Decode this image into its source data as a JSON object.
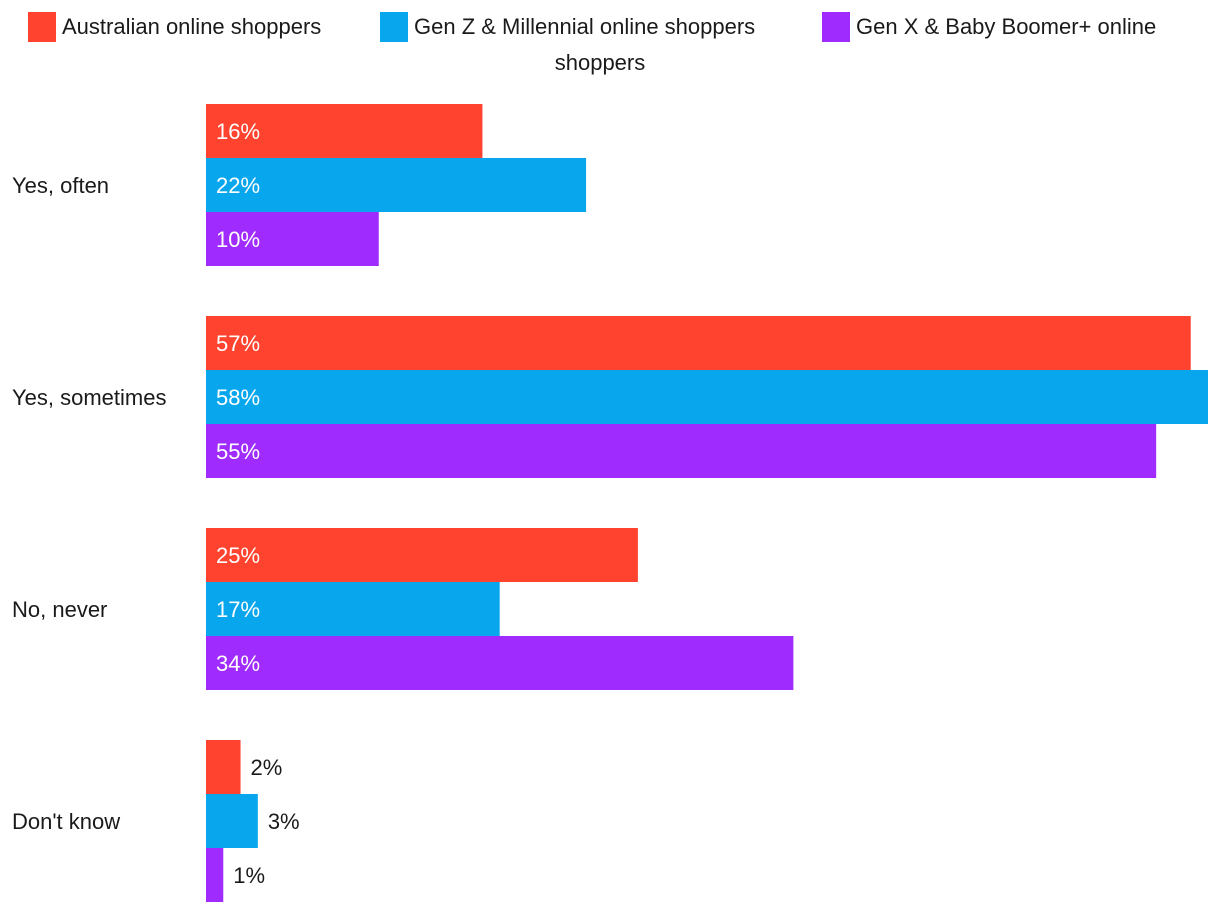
{
  "chart_data": {
    "type": "bar",
    "orientation": "horizontal",
    "categories": [
      "Yes, often",
      "Yes, sometimes",
      "No, never",
      "Don't know"
    ],
    "series": [
      {
        "name": "Australian online shoppers",
        "color": "#ff432e",
        "values": [
          16,
          57,
          25,
          2
        ]
      },
      {
        "name": "Gen Z & Millennial online shoppers",
        "color": "#08a6ec",
        "values": [
          22,
          58,
          17,
          3
        ]
      },
      {
        "name": "Gen X & Baby Boomer+ online shoppers",
        "color": "#a02bfe",
        "values": [
          10,
          55,
          34,
          1
        ]
      }
    ],
    "value_suffix": "%",
    "xlim": [
      0,
      58
    ],
    "grid": false,
    "legend_position": "top"
  },
  "legend": {
    "line2": "shoppers"
  }
}
